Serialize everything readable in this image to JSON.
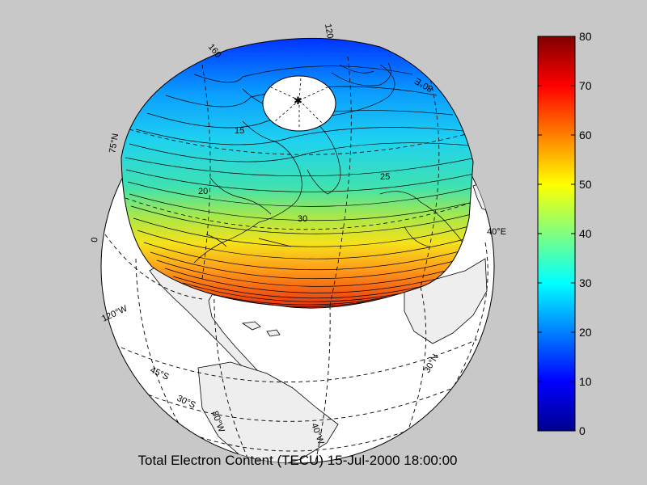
{
  "figure": {
    "title": "Total Electron Content (TECU)  15-Jul-2000 18:00:00"
  },
  "colorbar": {
    "min": 0,
    "max": 80,
    "ticks": [
      "0",
      "10",
      "20",
      "30",
      "40",
      "50",
      "60",
      "70",
      "80"
    ],
    "colormap": "jet"
  },
  "globe": {
    "projection": "orthographic",
    "graticule_labels": [
      {
        "id": "label-120e",
        "text": "120"
      },
      {
        "id": "label-160",
        "text": "160"
      },
      {
        "id": "label-80e",
        "text": "80°E"
      },
      {
        "id": "label-75n",
        "text": "75°N"
      },
      {
        "id": "label-0",
        "text": "0"
      },
      {
        "id": "label-40e",
        "text": "40°E"
      },
      {
        "id": "label-120w",
        "text": "120°W"
      },
      {
        "id": "label-45s",
        "text": "45°S"
      },
      {
        "id": "label-30s",
        "text": "30°S"
      },
      {
        "id": "label-80w",
        "text": "80°W"
      },
      {
        "id": "label-40w",
        "text": "40°W"
      },
      {
        "id": "label-30n",
        "text": "30°N"
      }
    ],
    "contour_labels": [
      "20",
      "30",
      "15",
      "25"
    ],
    "colors": {
      "ocean": "#ffffff",
      "land": "#eeeeee",
      "background": "#c8c8c8"
    }
  }
}
